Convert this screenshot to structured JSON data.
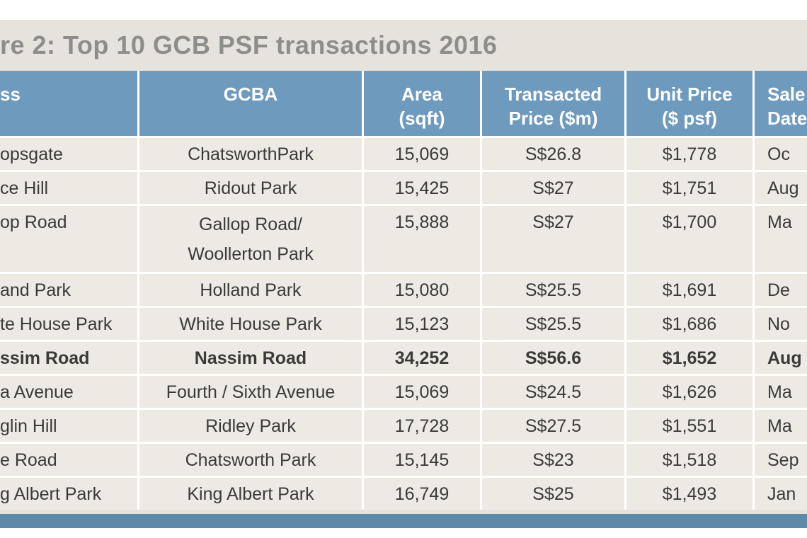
{
  "figure": {
    "title": "re 2: Top 10 GCB PSF transactions 2016"
  },
  "chart_data": {
    "type": "table",
    "title": "re 2: Top 10 GCB PSF transactions 2016",
    "columns": [
      {
        "key": "address",
        "lines": [
          "ss"
        ]
      },
      {
        "key": "gcba",
        "lines": [
          "GCBA"
        ]
      },
      {
        "key": "area_sqft",
        "lines": [
          "Area",
          "(sqft)"
        ]
      },
      {
        "key": "transacted_price",
        "lines": [
          "Transacted",
          "Price ($m)"
        ]
      },
      {
        "key": "unit_price",
        "lines": [
          "Unit Price",
          "($ psf)"
        ]
      },
      {
        "key": "sale_date",
        "lines": [
          "Sale",
          "Date"
        ]
      }
    ],
    "rows": [
      {
        "cells": [
          [
            "opsgate"
          ],
          [
            "ChatsworthPark"
          ],
          [
            "15,069"
          ],
          [
            "S$26.8"
          ],
          [
            "$1,778"
          ],
          [
            "Oc"
          ]
        ],
        "bold": false,
        "tall": false
      },
      {
        "cells": [
          [
            "ce Hill"
          ],
          [
            "Ridout Park"
          ],
          [
            "15,425"
          ],
          [
            "S$27"
          ],
          [
            "$1,751"
          ],
          [
            "Aug"
          ]
        ],
        "bold": false,
        "tall": false
      },
      {
        "cells": [
          [
            "op Road"
          ],
          [
            "Gallop Road/",
            "Woollerton Park"
          ],
          [
            "15,888"
          ],
          [
            "S$27"
          ],
          [
            "$1,700"
          ],
          [
            "Ma"
          ]
        ],
        "bold": false,
        "tall": true
      },
      {
        "cells": [
          [
            "and Park"
          ],
          [
            "Holland Park"
          ],
          [
            "15,080"
          ],
          [
            "S$25.5"
          ],
          [
            "$1,691"
          ],
          [
            "De"
          ]
        ],
        "bold": false,
        "tall": false
      },
      {
        "cells": [
          [
            "te House Park"
          ],
          [
            "White House Park"
          ],
          [
            "15,123"
          ],
          [
            "S$25.5"
          ],
          [
            "$1,686"
          ],
          [
            "No"
          ]
        ],
        "bold": false,
        "tall": false
      },
      {
        "cells": [
          [
            "ssim Road"
          ],
          [
            "Nassim Road"
          ],
          [
            "34,252"
          ],
          [
            "S$56.6"
          ],
          [
            "$1,652"
          ],
          [
            "Aug"
          ]
        ],
        "bold": true,
        "tall": false
      },
      {
        "cells": [
          [
            "a Avenue"
          ],
          [
            "Fourth / Sixth Avenue"
          ],
          [
            "15,069"
          ],
          [
            "S$24.5"
          ],
          [
            "$1,626"
          ],
          [
            "Ma"
          ]
        ],
        "bold": false,
        "tall": false
      },
      {
        "cells": [
          [
            "glin Hill"
          ],
          [
            "Ridley Park"
          ],
          [
            "17,728"
          ],
          [
            "S$27.5"
          ],
          [
            "$1,551"
          ],
          [
            "Ma"
          ]
        ],
        "bold": false,
        "tall": false
      },
      {
        "cells": [
          [
            "e Road"
          ],
          [
            "Chatsworth Park"
          ],
          [
            "15,145"
          ],
          [
            "S$23"
          ],
          [
            "$1,518"
          ],
          [
            "Sep"
          ]
        ],
        "bold": false,
        "tall": false
      },
      {
        "cells": [
          [
            "g Albert Park"
          ],
          [
            "King Albert Park"
          ],
          [
            "16,749"
          ],
          [
            "S$25"
          ],
          [
            "$1,493"
          ],
          [
            "Jan"
          ]
        ],
        "bold": false,
        "tall": false
      }
    ]
  },
  "colors": {
    "header_bg": "#6e9bbd",
    "row_bg": "#edeae3",
    "figure_bg": "#e6e3dc",
    "bottom_bar": "#5e89a9",
    "title_text": "#8d8d8a",
    "cell_text": "#3a3a38"
  }
}
